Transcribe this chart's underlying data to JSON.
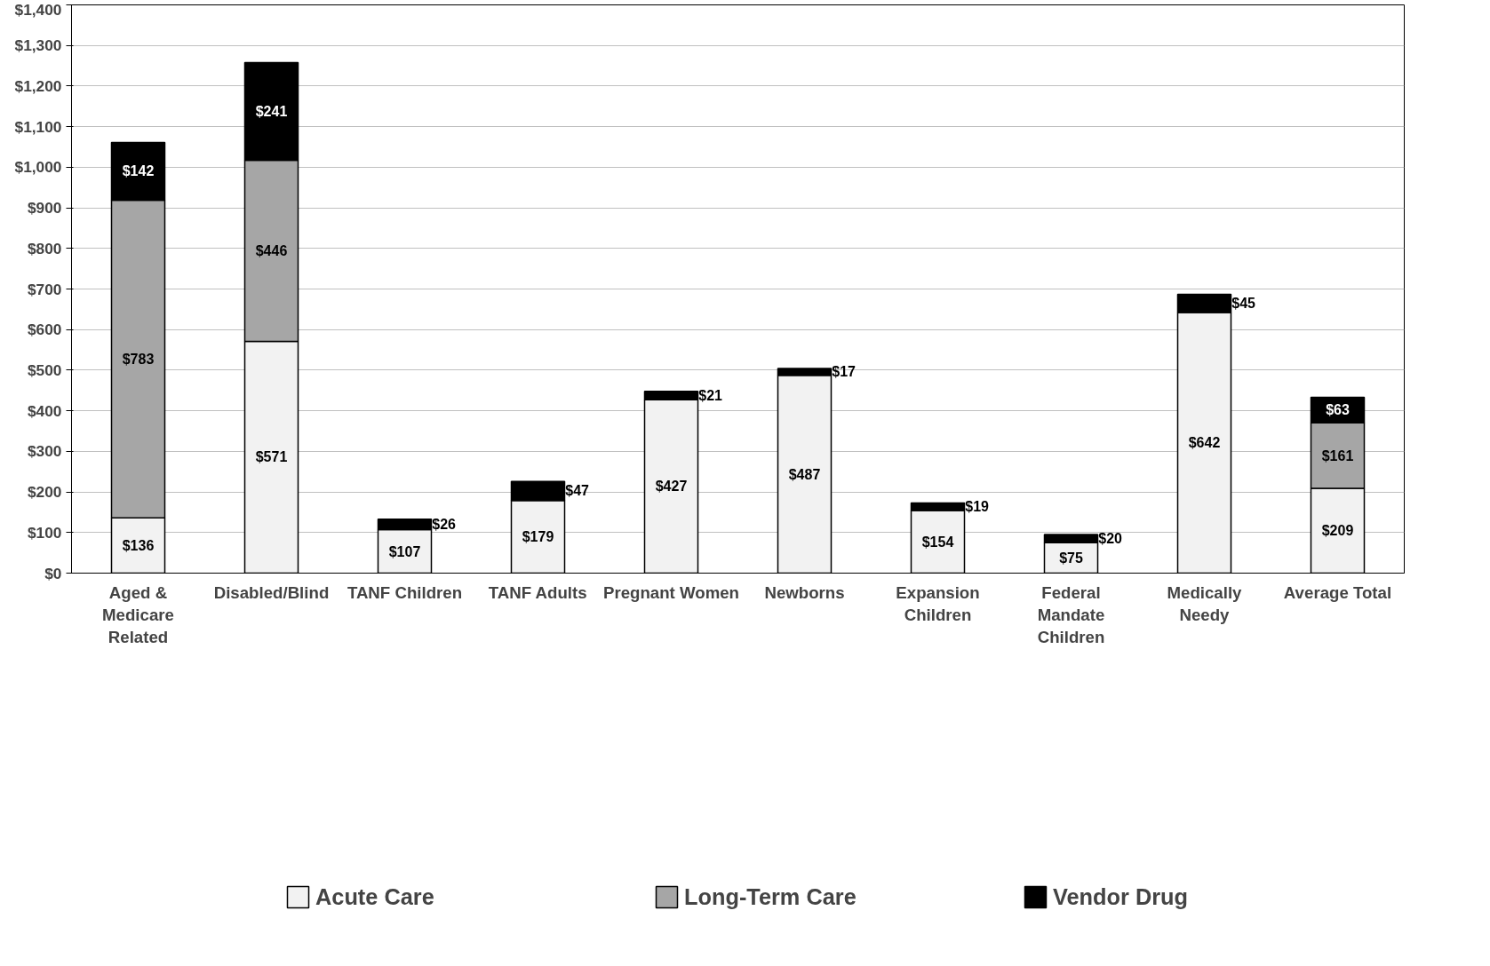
{
  "chart_data": {
    "type": "bar",
    "stacked": true,
    "categories": [
      "Aged & Medicare Related",
      "Disabled/Blind",
      "TANF Children",
      "TANF Adults",
      "Pregnant Women",
      "Newborns",
      "Expansion Children",
      "Federal Mandate Children",
      "Medically Needy",
      "Average Total"
    ],
    "series": [
      {
        "name": "Acute Care",
        "color": "#f2f2f2",
        "values": [
          136,
          571,
          107,
          179,
          427,
          487,
          154,
          75,
          642,
          209
        ],
        "value_labels": [
          "$136",
          "$571",
          "$107",
          "$179",
          "$427",
          "$487",
          "$154",
          "$75",
          "$642",
          "$209"
        ]
      },
      {
        "name": "Long-Term Care",
        "color": "#a6a6a6",
        "values": [
          783,
          446,
          null,
          null,
          null,
          null,
          null,
          null,
          null,
          161
        ],
        "value_labels": [
          "$783",
          "$446",
          null,
          null,
          null,
          null,
          null,
          null,
          null,
          "$161"
        ]
      },
      {
        "name": "Vendor Drug",
        "color": "#000000",
        "values": [
          142,
          241,
          26,
          47,
          21,
          17,
          19,
          20,
          45,
          63
        ],
        "value_labels": [
          "$142",
          "$241",
          "$26",
          "$47",
          "$21",
          "$17",
          "$19",
          "$20",
          "$45",
          "$63"
        ]
      }
    ],
    "ylim": [
      0,
      1400
    ],
    "yticks": [
      {
        "value": 0,
        "label": "$0"
      },
      {
        "value": 100,
        "label": "$100"
      },
      {
        "value": 200,
        "label": "$200"
      },
      {
        "value": 300,
        "label": "$300"
      },
      {
        "value": 400,
        "label": "$400"
      },
      {
        "value": 500,
        "label": "$500"
      },
      {
        "value": 600,
        "label": "$600"
      },
      {
        "value": 700,
        "label": "$700"
      },
      {
        "value": 800,
        "label": "$800"
      },
      {
        "value": 900,
        "label": "$900"
      },
      {
        "value": 1000,
        "label": "$1,000"
      },
      {
        "value": 1100,
        "label": "$1,100"
      },
      {
        "value": 1200,
        "label": "$1,200"
      },
      {
        "value": 1300,
        "label": "$1,300"
      },
      {
        "value": 1400,
        "label": "$1,400"
      }
    ],
    "grid": "y",
    "legend": "bottom"
  }
}
